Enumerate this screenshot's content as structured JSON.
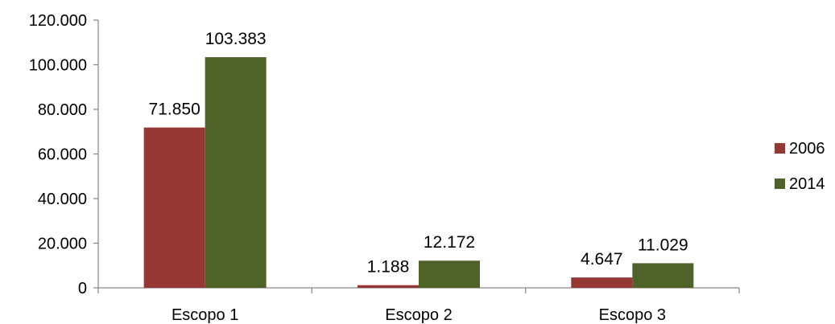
{
  "chart_data": {
    "type": "bar",
    "categories": [
      "Escopo 1",
      "Escopo 2",
      "Escopo 3"
    ],
    "series": [
      {
        "name": "2006",
        "color": "#953735",
        "values": [
          71850,
          1188,
          4647
        ],
        "labels": [
          "71.850",
          "1.188",
          "4.647"
        ]
      },
      {
        "name": "2014",
        "color": "#4F6228",
        "values": [
          103383,
          12172,
          11029
        ],
        "labels": [
          "103.383",
          "12.172",
          "11.029"
        ]
      }
    ],
    "ylim": [
      0,
      120000
    ],
    "yticks": [
      0,
      20000,
      40000,
      60000,
      80000,
      100000,
      120000
    ],
    "ytick_labels": [
      "0",
      "20.000",
      "40.000",
      "60.000",
      "80.000",
      "100.000",
      "120.000"
    ],
    "title": "",
    "xlabel": "",
    "ylabel": "",
    "grid": false,
    "legend_position": "right"
  }
}
